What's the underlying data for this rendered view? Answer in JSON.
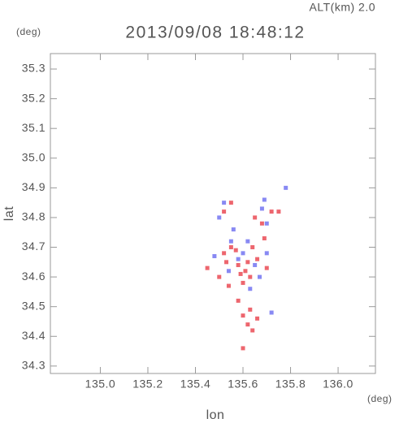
{
  "chart_data": {
    "type": "scatter",
    "title": "2013/09/08 18:48:12",
    "subtitle": "ALT(km) 2.0",
    "y_unit": "(deg)",
    "x_unit": "(deg)",
    "xlabel": "lon",
    "ylabel": "lat",
    "xlim": [
      134.79,
      136.157
    ],
    "ylim": [
      34.275,
      35.352
    ],
    "xticks": [
      {
        "value": 135.0,
        "label": "135.0"
      },
      135.2,
      135.4,
      135.6,
      135.8,
      {
        "value": 136.0,
        "label": "136.0"
      }
    ],
    "yticks": [
      34.3,
      34.4,
      34.5,
      34.6,
      34.7,
      34.8,
      34.9,
      {
        "value": 35.0,
        "label": "35.0"
      },
      35.1,
      35.2,
      35.3
    ],
    "series": [
      {
        "color": "#e8404a",
        "x": [
          135.62,
          135.58,
          135.55,
          135.52,
          135.45,
          135.6,
          135.63,
          135.66,
          135.5,
          135.54,
          135.58,
          135.6,
          135.62,
          135.64,
          135.6,
          135.72,
          135.75,
          135.68,
          135.65,
          135.52,
          135.55,
          135.69,
          135.57,
          135.61,
          135.63,
          135.66,
          135.53,
          135.59,
          135.64,
          135.7
        ],
        "values": [
          34.65,
          34.64,
          34.7,
          34.68,
          34.63,
          34.58,
          34.6,
          34.66,
          34.6,
          34.57,
          34.52,
          34.47,
          34.44,
          34.42,
          34.36,
          34.82,
          34.82,
          34.78,
          34.8,
          34.82,
          34.85,
          34.73,
          34.69,
          34.62,
          34.49,
          34.46,
          34.65,
          34.61,
          34.7,
          34.63
        ]
      },
      {
        "color": "#6a6cf0",
        "x": [
          135.78,
          135.72,
          135.65,
          135.7,
          135.55,
          135.52,
          135.5,
          135.68,
          135.62,
          135.58,
          135.67,
          135.54,
          135.6,
          135.7,
          135.63,
          135.48,
          135.69,
          135.56
        ],
        "values": [
          34.9,
          34.48,
          34.64,
          34.68,
          34.72,
          34.85,
          34.8,
          34.83,
          34.72,
          34.66,
          34.6,
          34.62,
          34.68,
          34.78,
          34.56,
          34.67,
          34.86,
          34.76
        ]
      }
    ]
  }
}
